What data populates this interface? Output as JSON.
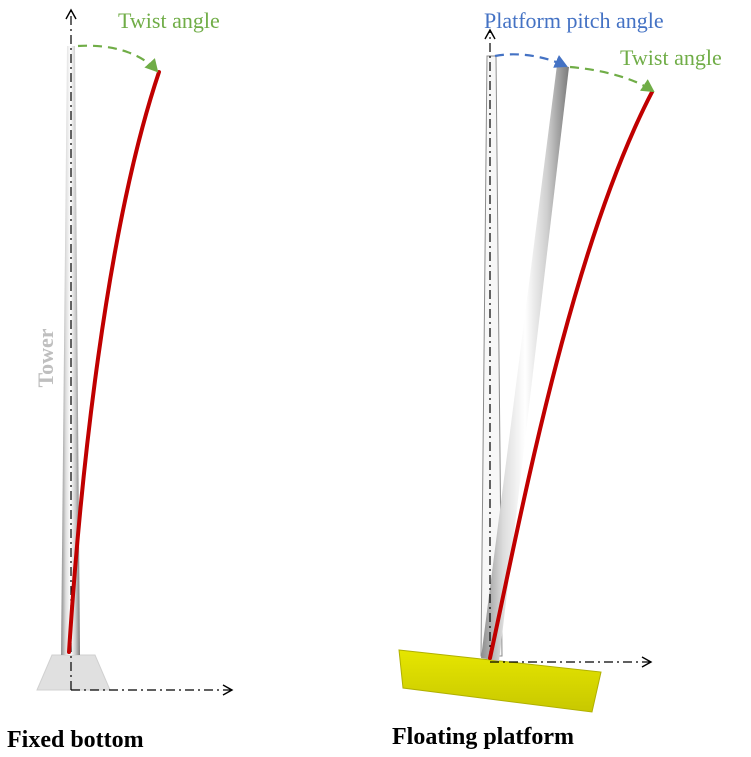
{
  "labels": {
    "left_twist": "Twist angle",
    "right_pitch": "Platform pitch angle",
    "right_twist": "Twist angle",
    "tower": "Tower",
    "caption_left": "Fixed bottom",
    "caption_right": "Floating platform"
  },
  "colors": {
    "twist_arrow": "#70ad47",
    "pitch_arrow": "#4472c4",
    "deflection_curve": "#c00000",
    "tower_label": "#bfbfbf",
    "platform_fill": "#d4d400",
    "fixed_base_fill": "#e0e0e0"
  }
}
